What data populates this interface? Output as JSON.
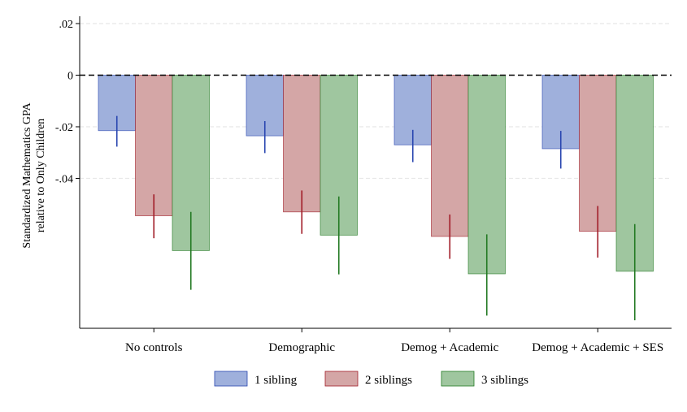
{
  "chart_data": {
    "type": "bar",
    "ylabel_lines": [
      "Standardized Mathematics GPA",
      "relative to Only Children"
    ],
    "categories": [
      "No controls",
      "Demographic",
      "Demog + Academic",
      "Demog + Academic + SES"
    ],
    "ylim": [
      -0.098,
      0.024
    ],
    "yticks": [
      0.02,
      0,
      -0.02,
      -0.04
    ],
    "ytick_labels": [
      ".02",
      "0",
      "-.02",
      "-.04"
    ],
    "grid": true,
    "reference_line": 0,
    "legend_position": "bottom",
    "series": [
      {
        "name": "1 sibling",
        "values": [
          -0.0215,
          -0.0235,
          -0.027,
          -0.0285
        ],
        "ci_low": [
          -0.0277,
          -0.0302,
          -0.0337,
          -0.0362
        ],
        "ci_high": [
          -0.0158,
          -0.0178,
          -0.0212,
          -0.0216
        ],
        "fill": "#9fb0dc",
        "stroke": "#2946b0"
      },
      {
        "name": "2 siblings",
        "values": [
          -0.0545,
          -0.053,
          -0.0625,
          -0.0605
        ],
        "ci_low": [
          -0.0632,
          -0.0615,
          -0.0712,
          -0.0707
        ],
        "ci_high": [
          -0.0462,
          -0.0447,
          -0.054,
          -0.0507
        ],
        "fill": "#d4a6a6",
        "stroke": "#a11d28"
      },
      {
        "name": "3 siblings",
        "values": [
          -0.068,
          -0.062,
          -0.077,
          -0.076
        ],
        "ci_low": [
          -0.0832,
          -0.0772,
          -0.0932,
          -0.095
        ],
        "ci_high": [
          -0.053,
          -0.047,
          -0.0617,
          -0.0577
        ],
        "fill": "#9fc69f",
        "stroke": "#247a24"
      }
    ]
  }
}
